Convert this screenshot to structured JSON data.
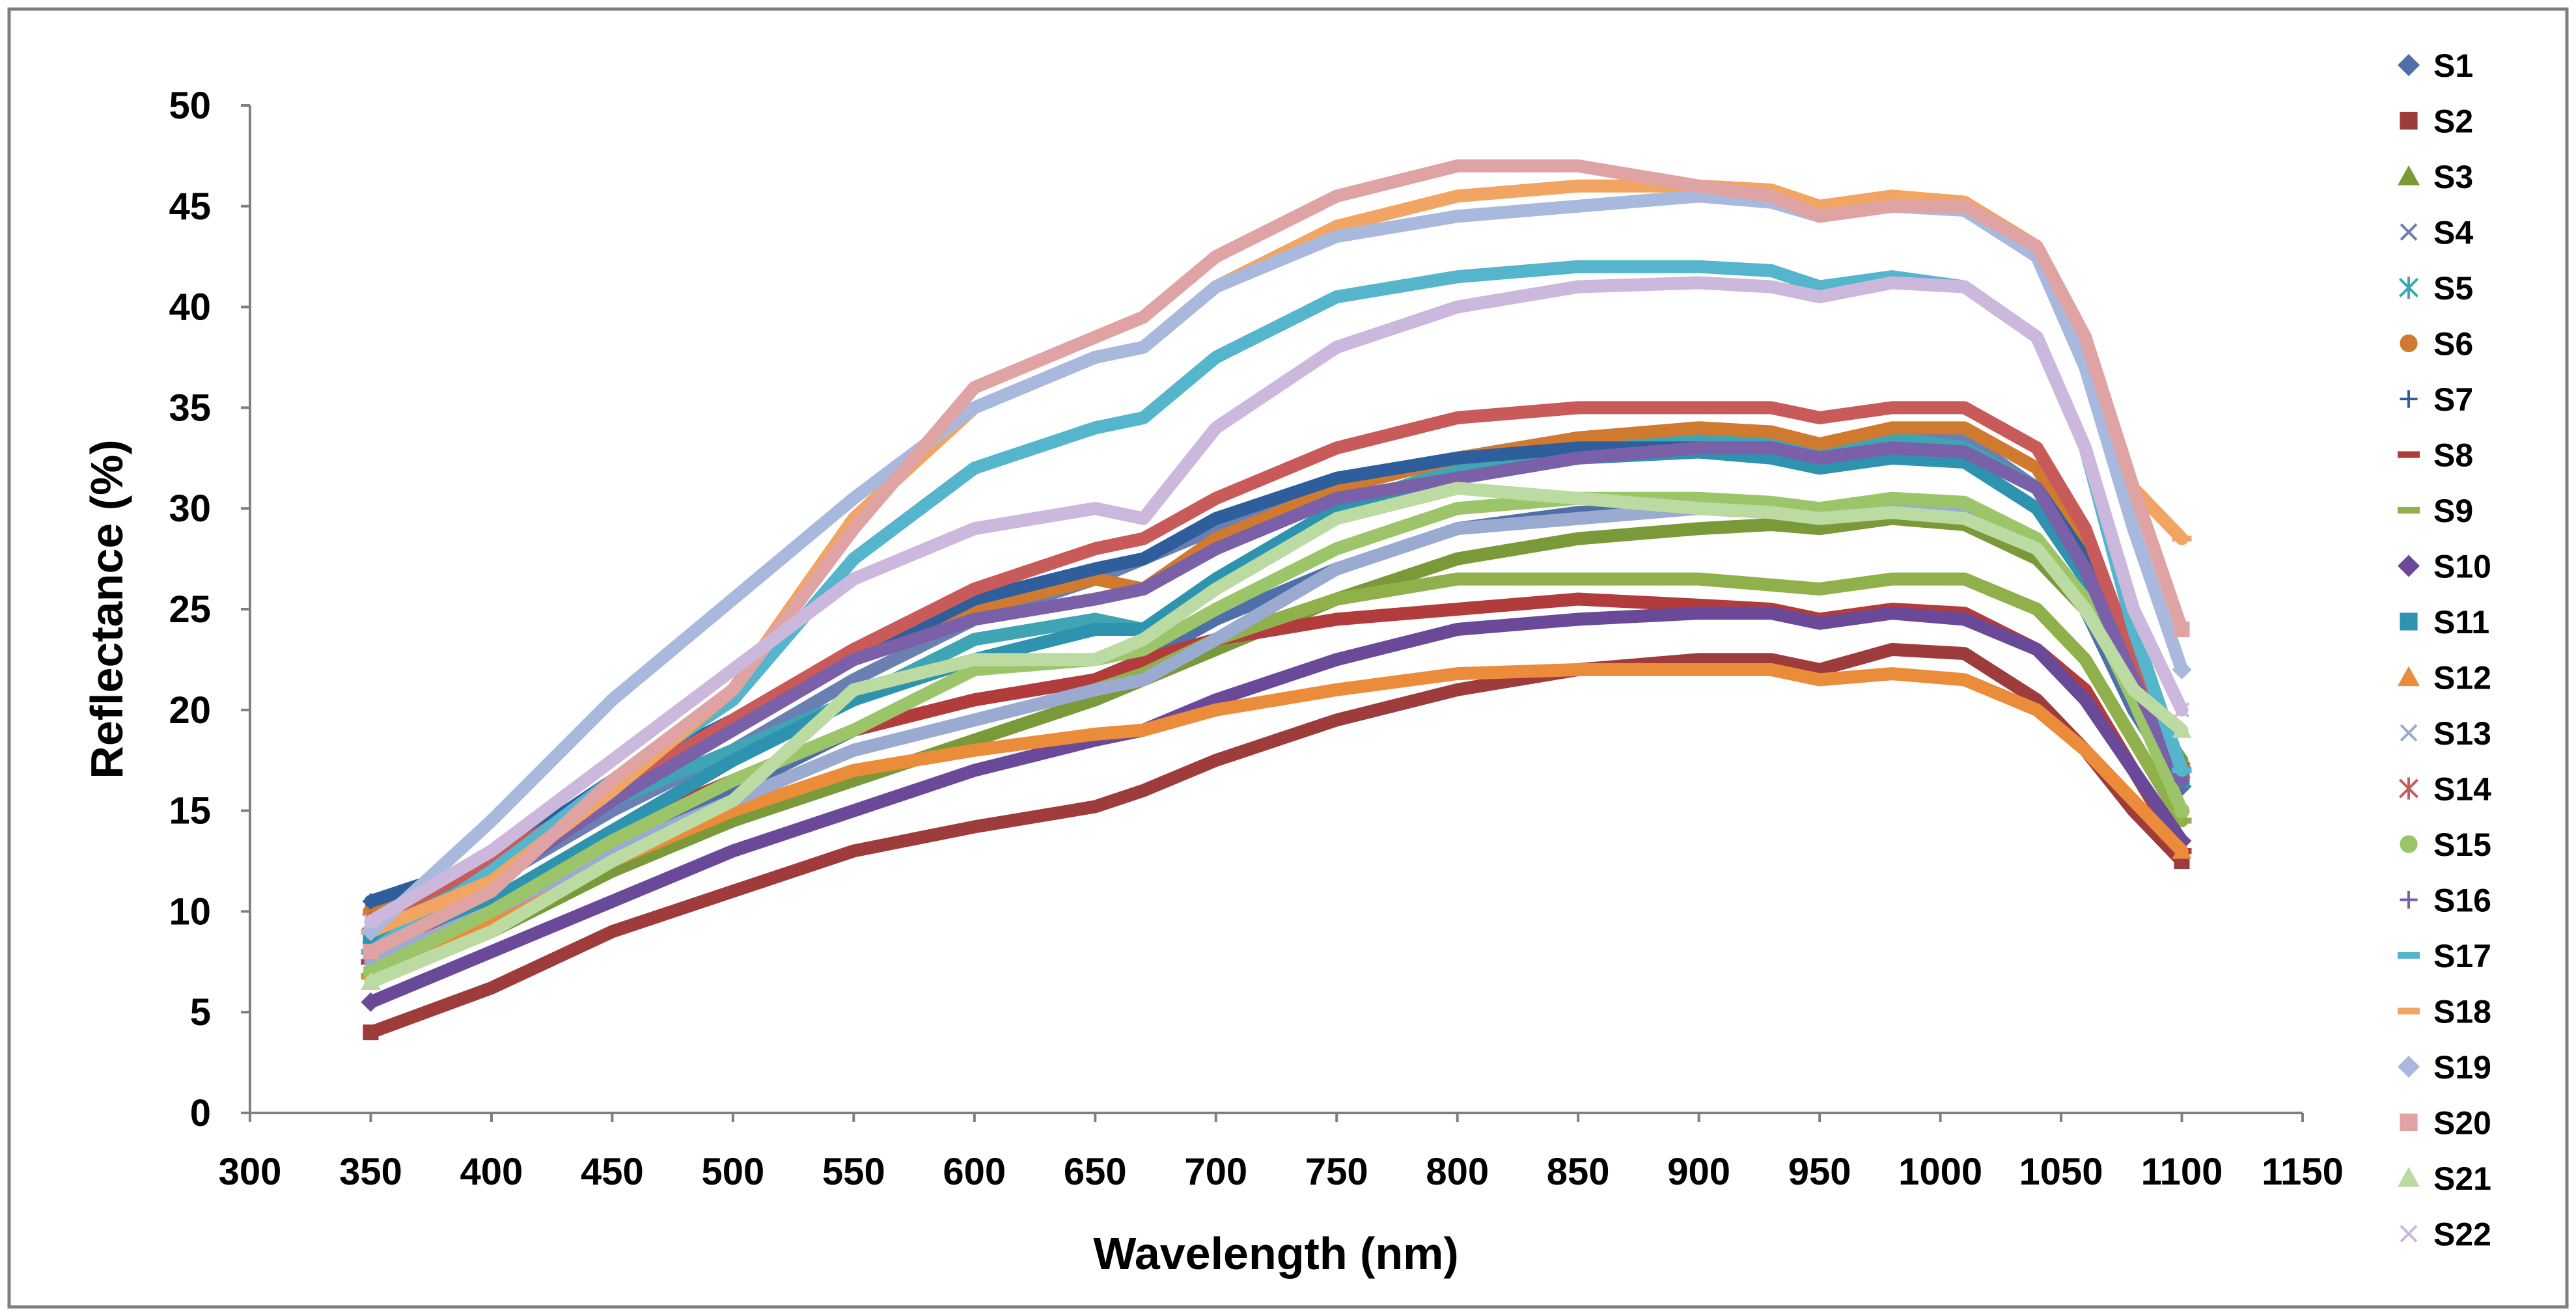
{
  "chart_data": {
    "type": "line",
    "title": "",
    "xlabel": "Wavelength (nm)",
    "ylabel": "Reflectance (%)",
    "xlim": [
      300,
      1150
    ],
    "ylim": [
      0,
      50
    ],
    "xticks": [
      "300",
      "350",
      "400",
      "450",
      "500",
      "550",
      "600",
      "650",
      "700",
      "750",
      "800",
      "850",
      "900",
      "950",
      "1000",
      "1050",
      "1100",
      "1150"
    ],
    "yticks": [
      "0",
      "5",
      "10",
      "15",
      "20",
      "25",
      "30",
      "35",
      "40",
      "45",
      "50"
    ],
    "grid": false,
    "legend_position": "right",
    "x": [
      350,
      400,
      450,
      500,
      550,
      600,
      650,
      670,
      700,
      750,
      800,
      850,
      900,
      930,
      950,
      980,
      1010,
      1040,
      1060,
      1080,
      1100
    ],
    "series": [
      {
        "name": "S1",
        "color": "#4F6FA8",
        "marker": "diamond",
        "values": [
          6.8,
          10.0,
          13.5,
          16.0,
          19.0,
          20.5,
          21.5,
          22.5,
          24.5,
          27.0,
          29.0,
          29.8,
          30.0,
          29.8,
          29.5,
          30.0,
          30.0,
          28.0,
          25.0,
          20.0,
          16.2
        ]
      },
      {
        "name": "S2",
        "color": "#9E3B3B",
        "marker": "square",
        "values": [
          4.0,
          6.2,
          9.0,
          11.0,
          13.0,
          14.2,
          15.2,
          16.0,
          17.5,
          19.5,
          21.0,
          22.0,
          22.5,
          22.5,
          22.0,
          23.0,
          22.8,
          20.5,
          18.0,
          15.0,
          12.5
        ]
      },
      {
        "name": "S3",
        "color": "#7A9A3A",
        "marker": "triangle",
        "values": [
          6.5,
          9.0,
          12.0,
          14.5,
          16.5,
          18.5,
          20.5,
          21.5,
          23.0,
          25.5,
          27.5,
          28.5,
          29.0,
          29.2,
          29.0,
          29.5,
          29.2,
          27.5,
          25.0,
          21.0,
          17.5
        ]
      },
      {
        "name": "S4",
        "color": "#6A7FB2",
        "marker": "x",
        "values": [
          8.5,
          11.5,
          15.0,
          18.0,
          21.5,
          24.5,
          26.5,
          27.5,
          29.0,
          31.0,
          32.5,
          33.5,
          34.0,
          33.8,
          33.0,
          33.5,
          33.5,
          31.0,
          27.0,
          21.5,
          17.0
        ]
      },
      {
        "name": "S5",
        "color": "#3FA5B5",
        "marker": "star",
        "values": [
          8.8,
          12.0,
          15.5,
          18.0,
          20.5,
          23.5,
          24.5,
          24.0,
          26.5,
          30.0,
          32.0,
          33.0,
          33.5,
          33.5,
          33.0,
          33.5,
          33.0,
          31.0,
          27.0,
          21.5,
          17.0
        ]
      },
      {
        "name": "S6",
        "color": "#D07A30",
        "marker": "circle",
        "values": [
          10.0,
          12.5,
          16.0,
          19.5,
          23.0,
          25.0,
          26.5,
          26.0,
          28.5,
          31.0,
          32.5,
          33.5,
          34.0,
          33.8,
          33.2,
          34.0,
          34.0,
          32.0,
          28.0,
          22.0,
          17.0
        ]
      },
      {
        "name": "S7",
        "color": "#2E5E9C",
        "marker": "plus",
        "values": [
          10.5,
          12.5,
          16.5,
          19.5,
          22.5,
          25.5,
          27.0,
          27.5,
          29.5,
          31.5,
          32.5,
          33.0,
          33.0,
          33.0,
          32.5,
          33.0,
          32.8,
          31.0,
          27.5,
          22.0,
          17.0
        ]
      },
      {
        "name": "S8",
        "color": "#B23C3C",
        "marker": "dash",
        "values": [
          7.5,
          10.5,
          14.0,
          16.5,
          19.0,
          20.5,
          21.5,
          22.5,
          23.5,
          24.5,
          25.0,
          25.5,
          25.2,
          25.0,
          24.5,
          25.0,
          24.8,
          23.0,
          21.0,
          17.0,
          13.0
        ]
      },
      {
        "name": "S9",
        "color": "#8FB04A",
        "marker": "dash",
        "values": [
          6.8,
          9.5,
          13.0,
          15.5,
          18.0,
          19.5,
          21.0,
          21.8,
          23.5,
          25.5,
          26.5,
          26.5,
          26.5,
          26.2,
          26.0,
          26.5,
          26.5,
          25.0,
          22.5,
          18.5,
          14.5
        ]
      },
      {
        "name": "S10",
        "color": "#6A4A98",
        "marker": "diamond",
        "values": [
          5.5,
          8.0,
          10.5,
          13.0,
          15.0,
          17.0,
          18.5,
          19.0,
          20.5,
          22.5,
          24.0,
          24.5,
          24.8,
          24.8,
          24.3,
          24.8,
          24.5,
          23.0,
          20.5,
          17.0,
          13.5
        ]
      },
      {
        "name": "S11",
        "color": "#2E93AE",
        "marker": "square",
        "values": [
          8.5,
          10.5,
          14.0,
          17.5,
          20.5,
          22.5,
          24.0,
          24.0,
          26.5,
          30.0,
          31.5,
          32.5,
          32.8,
          32.5,
          32.0,
          32.5,
          32.3,
          30.0,
          26.5,
          21.0,
          16.5
        ]
      },
      {
        "name": "S12",
        "color": "#EA8C3A",
        "marker": "triangle",
        "values": [
          7.0,
          9.5,
          12.5,
          15.0,
          17.0,
          18.0,
          18.8,
          19.0,
          20.0,
          21.0,
          21.8,
          22.0,
          22.0,
          22.0,
          21.5,
          21.8,
          21.5,
          20.0,
          18.0,
          15.5,
          13.0
        ]
      },
      {
        "name": "S13",
        "color": "#9AAAD0",
        "marker": "x",
        "values": [
          7.5,
          10.0,
          13.0,
          15.5,
          18.0,
          19.5,
          21.0,
          21.5,
          23.5,
          27.0,
          29.0,
          29.5,
          30.0,
          29.8,
          29.5,
          30.0,
          30.0,
          28.5,
          25.5,
          21.0,
          17.0
        ]
      },
      {
        "name": "S14",
        "color": "#C85A5A",
        "marker": "star",
        "values": [
          9.5,
          12.5,
          16.0,
          19.5,
          23.0,
          26.0,
          28.0,
          28.5,
          30.5,
          33.0,
          34.5,
          35.0,
          35.0,
          35.0,
          34.5,
          35.0,
          35.0,
          33.0,
          29.0,
          22.5,
          17.0
        ]
      },
      {
        "name": "S15",
        "color": "#9CC56A",
        "marker": "circle",
        "values": [
          7.0,
          10.0,
          13.5,
          16.5,
          19.0,
          22.0,
          22.5,
          23.0,
          25.0,
          28.0,
          30.0,
          30.5,
          30.5,
          30.3,
          30.0,
          30.5,
          30.3,
          28.5,
          25.5,
          20.5,
          15.0
        ]
      },
      {
        "name": "S16",
        "color": "#7A60A8",
        "marker": "plus",
        "values": [
          8.0,
          11.5,
          15.5,
          19.0,
          22.5,
          24.5,
          25.5,
          26.0,
          28.0,
          30.5,
          31.5,
          32.5,
          33.0,
          33.0,
          32.5,
          33.0,
          32.8,
          31.0,
          27.0,
          21.5,
          16.5
        ]
      },
      {
        "name": "S17",
        "color": "#55B5CC",
        "marker": "dash",
        "values": [
          8.0,
          12.0,
          16.5,
          20.5,
          27.5,
          32.0,
          34.0,
          34.5,
          37.5,
          40.5,
          41.5,
          42.0,
          42.0,
          41.8,
          41.0,
          41.5,
          41.0,
          38.5,
          33.0,
          24.0,
          17.0
        ]
      },
      {
        "name": "S18",
        "color": "#F2A463",
        "marker": "dash",
        "values": [
          9.0,
          11.5,
          16.0,
          21.0,
          29.5,
          35.0,
          37.5,
          38.0,
          41.0,
          44.0,
          45.5,
          46.0,
          46.0,
          45.8,
          45.0,
          45.5,
          45.2,
          43.0,
          38.5,
          31.0,
          28.5
        ]
      },
      {
        "name": "S19",
        "color": "#A9B9DE",
        "marker": "diamond",
        "values": [
          9.0,
          14.5,
          20.5,
          25.5,
          30.5,
          35.0,
          37.5,
          38.0,
          41.0,
          43.5,
          44.5,
          45.0,
          45.5,
          45.2,
          44.5,
          45.0,
          44.8,
          42.5,
          37.0,
          29.0,
          22.0
        ]
      },
      {
        "name": "S20",
        "color": "#E0A3A3",
        "marker": "square",
        "values": [
          8.0,
          11.0,
          16.5,
          21.0,
          29.0,
          36.0,
          38.5,
          39.5,
          42.5,
          45.5,
          47.0,
          47.0,
          46.0,
          45.5,
          44.5,
          45.0,
          45.0,
          43.0,
          38.5,
          31.0,
          24.0
        ]
      },
      {
        "name": "S21",
        "color": "#BBDBA2",
        "marker": "triangle",
        "values": [
          6.5,
          9.0,
          12.5,
          15.5,
          21.0,
          22.5,
          22.5,
          23.5,
          26.0,
          29.5,
          31.0,
          30.5,
          30.0,
          29.8,
          29.5,
          29.8,
          29.5,
          28.0,
          25.0,
          21.0,
          19.0
        ]
      },
      {
        "name": "S22",
        "color": "#CBB8DC",
        "marker": "x",
        "values": [
          9.5,
          13.0,
          17.5,
          22.0,
          26.5,
          29.0,
          30.0,
          29.5,
          34.0,
          38.0,
          40.0,
          41.0,
          41.2,
          41.0,
          40.5,
          41.2,
          41.0,
          38.5,
          33.0,
          25.0,
          20.0
        ]
      }
    ]
  }
}
